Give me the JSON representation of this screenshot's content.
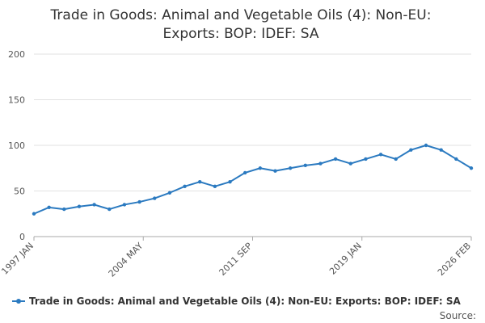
{
  "chart_data": {
    "type": "line",
    "title_lines": [
      "Trade in Goods: Animal and Vegetable Oils (4): Non-EU:",
      "Exports: BOP: IDEF: SA"
    ],
    "title": "Trade in Goods: Animal and Vegetable Oils (4): Non-EU: Exports: BOP: IDEF: SA",
    "xlabel": "",
    "ylabel": "",
    "ylim": [
      0,
      200
    ],
    "y_ticks": [
      "0",
      "50",
      "100",
      "150",
      "200"
    ],
    "x_ticks": [
      "1997 JAN",
      "2004 MAY",
      "2011 SEP",
      "2019 JAN",
      "2026 FEB"
    ],
    "grid": true,
    "legend_position": "bottom",
    "series": [
      {
        "name": "Trade in Goods: Animal and Vegetable Oils (4): Non-EU: Exports: BOP: IDEF: SA",
        "color": "#2B7AC0",
        "x": [
          "1997",
          "1998",
          "1999",
          "2000",
          "2001",
          "2002",
          "2003",
          "2004",
          "2005",
          "2006",
          "2007",
          "2008",
          "2009",
          "2010",
          "2011",
          "2012",
          "2013",
          "2014",
          "2015",
          "2016",
          "2017",
          "2018",
          "2019",
          "2020",
          "2021",
          "2022",
          "2023",
          "2024",
          "2025",
          "2026 FEB"
        ],
        "values": [
          25,
          32,
          30,
          33,
          35,
          30,
          35,
          38,
          42,
          48,
          55,
          60,
          55,
          60,
          70,
          75,
          72,
          75,
          78,
          80,
          85,
          80,
          85,
          90,
          85,
          95,
          100,
          95,
          85,
          75
        ]
      }
    ]
  },
  "source_label": "Source:"
}
